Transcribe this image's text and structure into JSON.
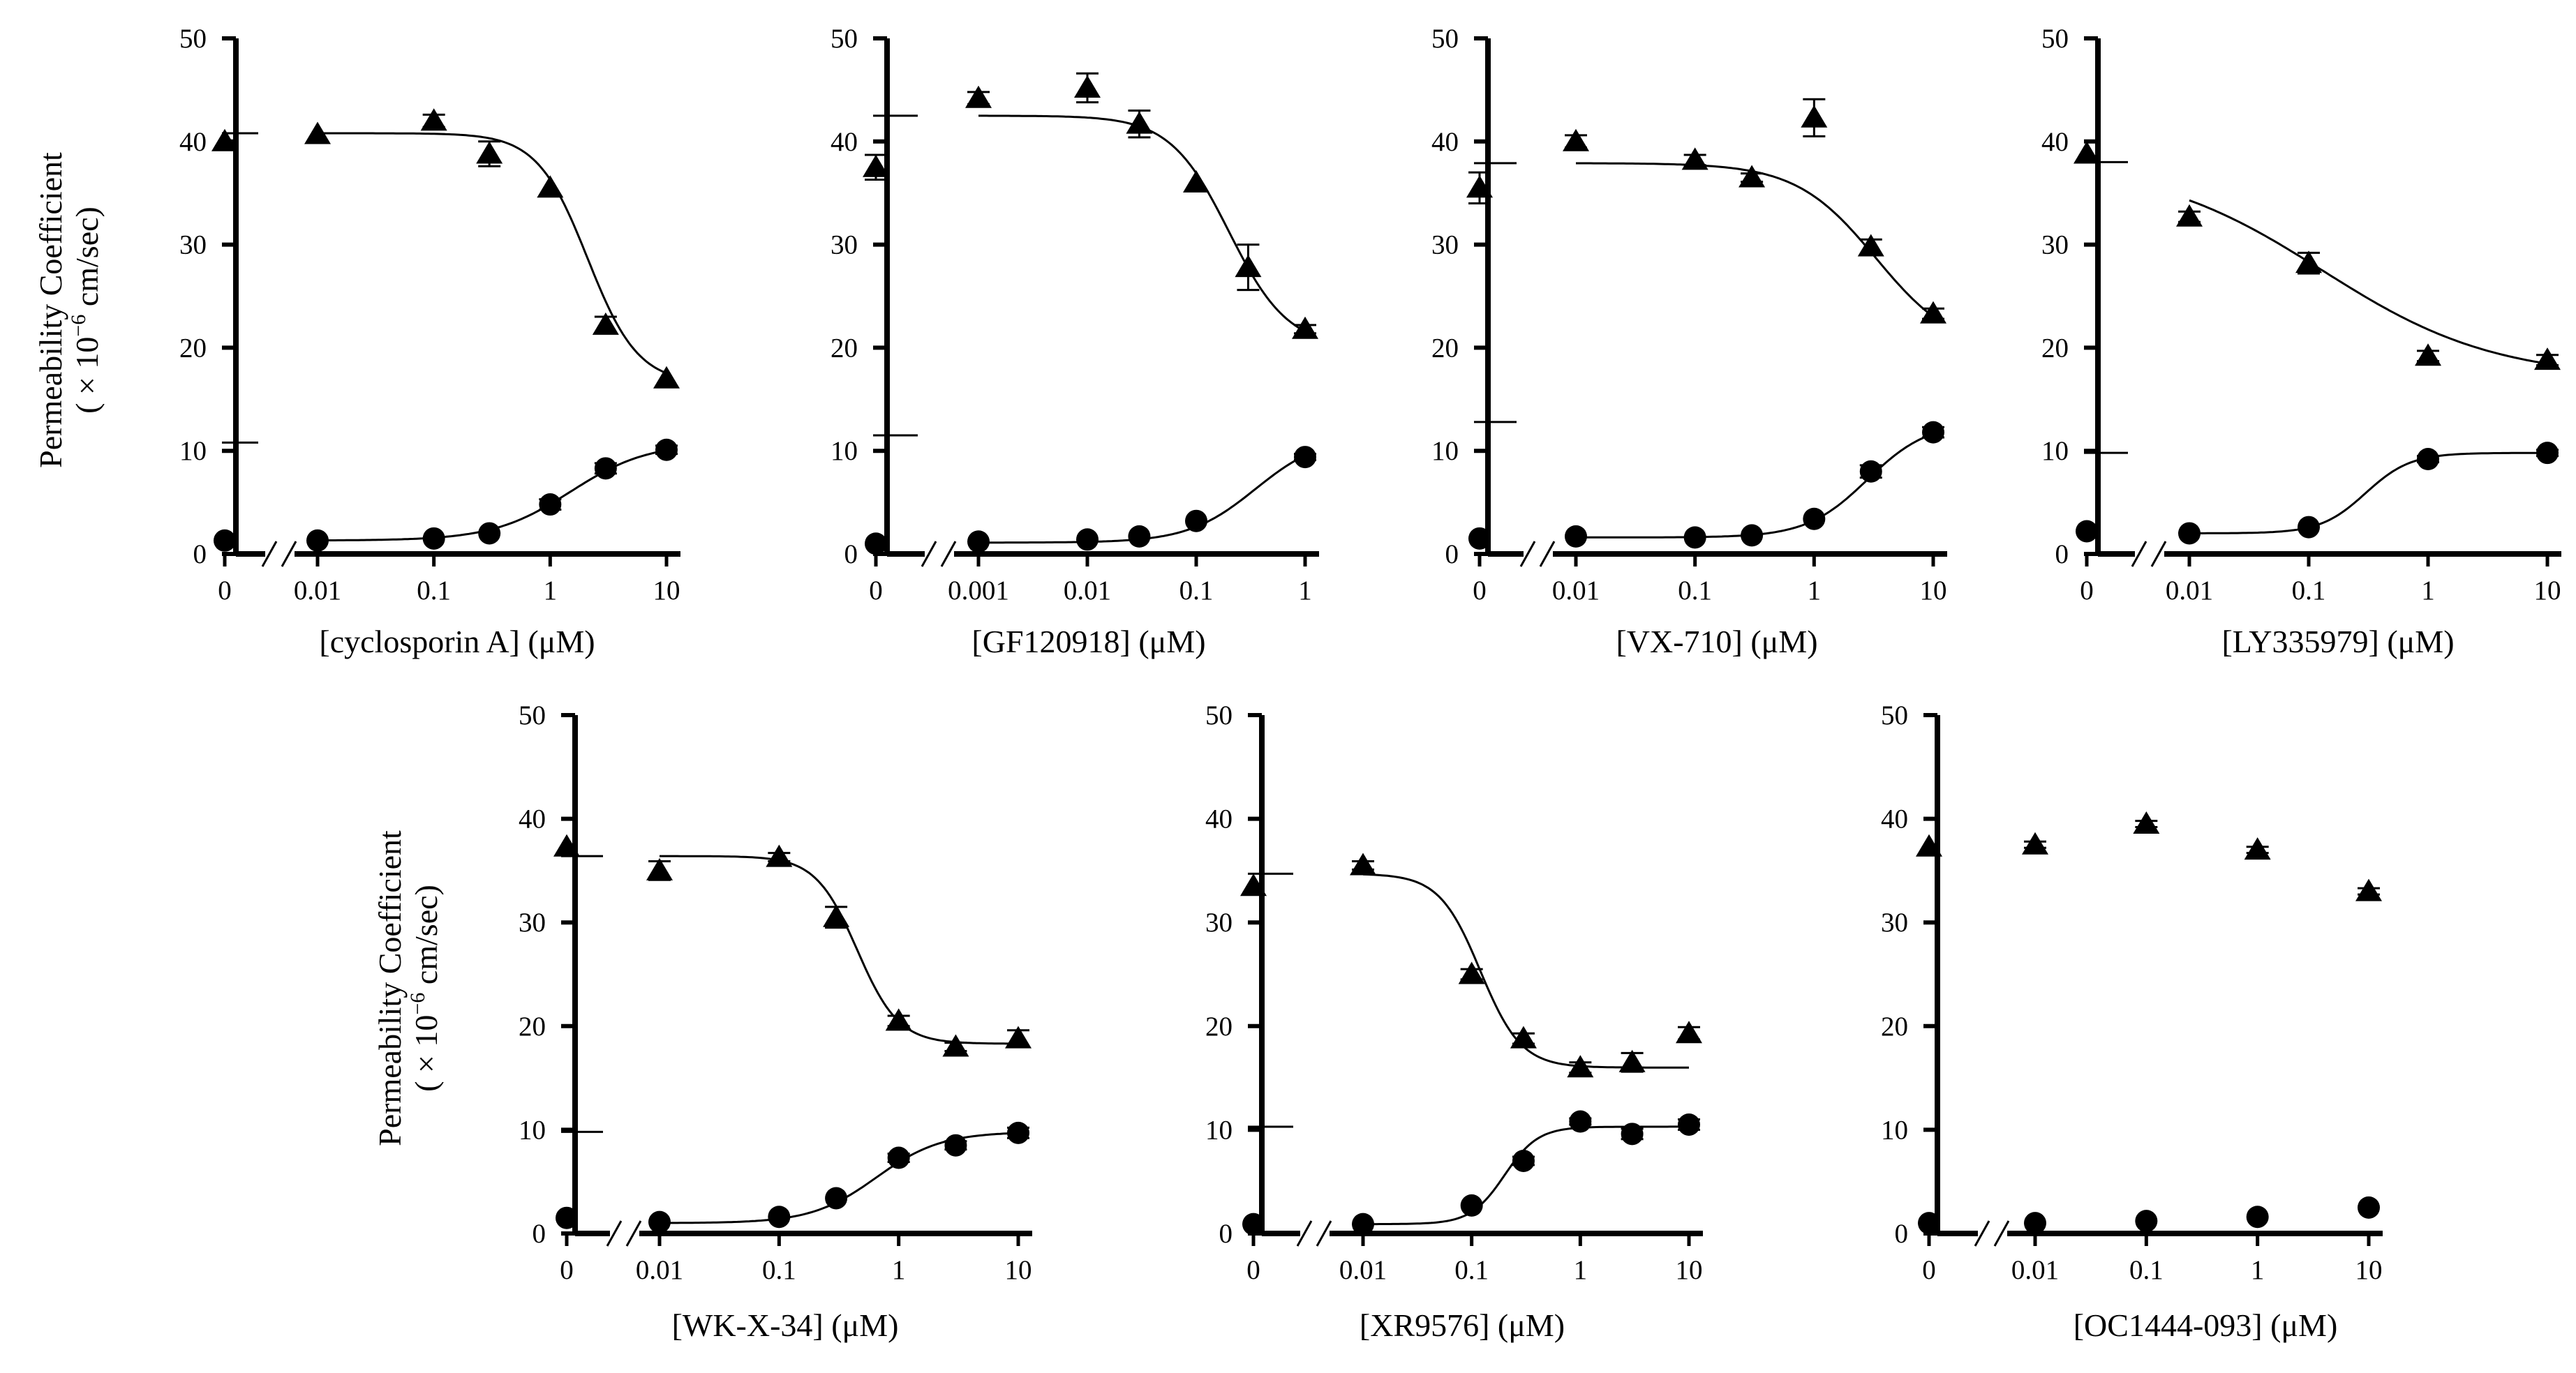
{
  "figure": {
    "ylabel_line1": "Permeability Coefficient",
    "ylabel_line2_prefix": "( × 10",
    "ylabel_line2_exp": "−6",
    "ylabel_line2_suffix": " cm/sec)"
  },
  "colors": {
    "ink": "#000000",
    "background": "#ffffff"
  },
  "chart_data": [
    {
      "type": "scatter",
      "title": "",
      "xlabel": "[cyclosporin A] (μM)",
      "ylabel": "Permeability Coefficient ( × 10⁻⁶ cm/sec)",
      "ylim": [
        0,
        50
      ],
      "yticks": [
        "0",
        "10",
        "20",
        "30",
        "40",
        "50"
      ],
      "zero_label": "0",
      "x_ticks": [
        {
          "value": 0.01,
          "label": "0.01"
        },
        {
          "value": 0.1,
          "label": "0.1"
        },
        {
          "value": 1,
          "label": "1"
        },
        {
          "value": 10,
          "label": "10"
        }
      ],
      "xlim_log": [
        0.008,
        12
      ],
      "series": [
        {
          "name": "triangles",
          "marker": "triangle",
          "control": 40.0,
          "control_err": 0,
          "x": [
            0.01,
            0.1,
            0.3,
            1,
            3,
            10
          ],
          "y": [
            40.7,
            42.0,
            38.8,
            35.5,
            22.2,
            17.0
          ],
          "err": [
            0,
            0.6,
            1.2,
            0,
            0.8,
            0
          ],
          "fit": {
            "bottom": 16.5,
            "top": 40.8,
            "ec50": 2.1,
            "hill": 2.0,
            "x_start": 0.01,
            "x_end": 10
          }
        },
        {
          "name": "circles",
          "marker": "circle",
          "control": 1.3,
          "control_err": 0,
          "x": [
            0.01,
            0.1,
            0.3,
            1,
            3,
            10
          ],
          "y": [
            1.3,
            1.5,
            2.0,
            4.8,
            8.3,
            10.1
          ],
          "err": [
            0,
            0,
            0,
            0.5,
            0.5,
            0.4
          ],
          "fit": {
            "bottom": 1.3,
            "top": 10.8,
            "ec50": 1.5,
            "hill": 1.3,
            "x_start": 0.01,
            "x_end": 10
          }
        }
      ]
    },
    {
      "type": "scatter",
      "title": "",
      "xlabel": "[GF120918] (μM)",
      "ylabel": "",
      "ylim": [
        0,
        50
      ],
      "yticks": [
        "0",
        "10",
        "20",
        "30",
        "40",
        "50"
      ],
      "zero_label": "0",
      "x_ticks": [
        {
          "value": 0.001,
          "label": "0.001"
        },
        {
          "value": 0.01,
          "label": "0.01"
        },
        {
          "value": 0.1,
          "label": "0.1"
        },
        {
          "value": 1,
          "label": "1"
        }
      ],
      "xlim_log": [
        0.0008,
        1.2
      ],
      "series": [
        {
          "name": "triangles",
          "marker": "triangle",
          "control": 37.5,
          "control_err": 1.2,
          "x": [
            0.001,
            0.01,
            0.03,
            0.1,
            0.3,
            1
          ],
          "y": [
            44.2,
            45.2,
            41.7,
            36.0,
            27.8,
            21.8
          ],
          "err": [
            0.6,
            1.4,
            1.3,
            0,
            2.2,
            0.4
          ],
          "fit": {
            "bottom": 20.0,
            "top": 42.5,
            "ec50": 0.2,
            "hill": 1.6,
            "x_start": 0.001,
            "x_end": 1
          }
        },
        {
          "name": "circles",
          "marker": "circle",
          "control": 1.0,
          "control_err": 0,
          "x": [
            0.001,
            0.01,
            0.03,
            0.1,
            1
          ],
          "y": [
            1.2,
            1.4,
            1.7,
            3.2,
            9.4
          ],
          "err": [
            0,
            0,
            0,
            0,
            0.3
          ],
          "fit": {
            "bottom": 1.1,
            "top": 11.5,
            "ec50": 0.35,
            "hill": 1.4,
            "x_start": 0.001,
            "x_end": 1
          }
        }
      ]
    },
    {
      "type": "scatter",
      "title": "",
      "xlabel": "[VX-710] (μM)",
      "ylabel": "",
      "ylim": [
        0,
        50
      ],
      "yticks": [
        "0",
        "10",
        "20",
        "30",
        "40",
        "50"
      ],
      "zero_label": "0",
      "x_ticks": [
        {
          "value": 0.01,
          "label": "0.01"
        },
        {
          "value": 0.1,
          "label": "0.1"
        },
        {
          "value": 1,
          "label": "1"
        },
        {
          "value": 10,
          "label": "10"
        }
      ],
      "xlim_log": [
        0.008,
        12
      ],
      "series": [
        {
          "name": "triangles",
          "marker": "triangle",
          "control": 35.5,
          "control_err": 1.5,
          "x": [
            0.01,
            0.1,
            0.3,
            1,
            3,
            10
          ],
          "y": [
            40.0,
            38.2,
            36.5,
            42.3,
            29.8,
            23.3
          ],
          "err": [
            0.6,
            0.5,
            0.4,
            1.8,
            0.7,
            0.5
          ],
          "fit": {
            "bottom": 19.5,
            "top": 37.9,
            "ec50": 3.3,
            "hill": 1.3,
            "x_start": 0.01,
            "x_end": 10
          }
        },
        {
          "name": "circles",
          "marker": "circle",
          "control": 1.5,
          "control_err": 0,
          "x": [
            0.01,
            0.1,
            0.3,
            1,
            3,
            10
          ],
          "y": [
            1.7,
            1.6,
            1.8,
            3.4,
            8.0,
            11.8
          ],
          "err": [
            0,
            0,
            0,
            0,
            0.6,
            0.5
          ],
          "fit": {
            "bottom": 1.6,
            "top": 12.8,
            "ec50": 2.8,
            "hill": 1.7,
            "x_start": 0.01,
            "x_end": 10
          }
        }
      ]
    },
    {
      "type": "scatter",
      "title": "",
      "xlabel": "[LY335979] (μM)",
      "ylabel": "",
      "ylim": [
        0,
        50
      ],
      "yticks": [
        "0",
        "10",
        "20",
        "30",
        "40",
        "50"
      ],
      "zero_label": "0",
      "x_ticks": [
        {
          "value": 0.01,
          "label": "0.01"
        },
        {
          "value": 0.1,
          "label": "0.1"
        },
        {
          "value": 1,
          "label": "1"
        },
        {
          "value": 10,
          "label": "10"
        }
      ],
      "xlim_log": [
        0.008,
        12
      ],
      "series": [
        {
          "name": "triangles",
          "marker": "triangle",
          "control": 38.8,
          "control_err": 0,
          "x": [
            0.01,
            0.1,
            1,
            10
          ],
          "y": [
            32.7,
            28.2,
            19.2,
            18.8
          ],
          "err": [
            0.5,
            1.0,
            0.5,
            0.5
          ],
          "fit": {
            "bottom": 17.0,
            "top": 38.0,
            "ec50": 0.13,
            "hill": 0.6,
            "x_start": 0.01,
            "x_end": 10
          }
        },
        {
          "name": "circles",
          "marker": "circle",
          "control": 2.2,
          "control_err": 0,
          "x": [
            0.01,
            0.1,
            1,
            10
          ],
          "y": [
            2.0,
            2.6,
            9.2,
            9.8
          ],
          "err": [
            0,
            0,
            0.3,
            0.3
          ],
          "fit": {
            "bottom": 2.0,
            "top": 9.8,
            "ec50": 0.3,
            "hill": 2.3,
            "x_start": 0.01,
            "x_end": 10
          }
        }
      ]
    },
    {
      "type": "scatter",
      "title": "",
      "xlabel": "[WK-X-34] (μM)",
      "ylabel": "Permeability Coefficient ( × 10⁻⁶ cm/sec)",
      "ylim": [
        0,
        50
      ],
      "yticks": [
        "0",
        "10",
        "20",
        "30",
        "40",
        "50"
      ],
      "zero_label": "0",
      "x_ticks": [
        {
          "value": 0.01,
          "label": "0.01"
        },
        {
          "value": 0.1,
          "label": "0.1"
        },
        {
          "value": 1,
          "label": "1"
        },
        {
          "value": 10,
          "label": "10"
        }
      ],
      "xlim_log": [
        0.008,
        12
      ],
      "series": [
        {
          "name": "triangles",
          "marker": "triangle",
          "control": 37.3,
          "control_err": 0,
          "x": [
            0.01,
            0.1,
            0.3,
            1,
            3,
            10
          ],
          "y": [
            35.0,
            36.3,
            30.5,
            20.5,
            18.0,
            18.8
          ],
          "err": [
            0.9,
            0.4,
            1.0,
            0.5,
            0.4,
            0.8
          ],
          "fit": {
            "bottom": 18.3,
            "top": 36.4,
            "ec50": 0.45,
            "hill": 2.5,
            "x_start": 0.01,
            "x_end": 10
          }
        },
        {
          "name": "circles",
          "marker": "circle",
          "control": 1.5,
          "control_err": 0,
          "x": [
            0.01,
            0.1,
            0.3,
            1,
            3,
            10
          ],
          "y": [
            1.1,
            1.6,
            3.4,
            7.3,
            8.5,
            9.7
          ],
          "err": [
            0,
            0,
            0,
            0.4,
            0.4,
            0.5
          ],
          "fit": {
            "bottom": 1.0,
            "top": 9.8,
            "ec50": 0.65,
            "hill": 1.6,
            "x_start": 0.01,
            "x_end": 10
          }
        }
      ]
    },
    {
      "type": "scatter",
      "title": "",
      "xlabel": "[XR9576] (μM)",
      "ylabel": "",
      "ylim": [
        0,
        50
      ],
      "yticks": [
        "0",
        "10",
        "20",
        "30",
        "40",
        "50"
      ],
      "zero_label": "0",
      "x_ticks": [
        {
          "value": 0.01,
          "label": "0.01"
        },
        {
          "value": 0.1,
          "label": "0.1"
        },
        {
          "value": 1,
          "label": "1"
        },
        {
          "value": 10,
          "label": "10"
        }
      ],
      "xlim_log": [
        0.008,
        12
      ],
      "series": [
        {
          "name": "triangles",
          "marker": "triangle",
          "control": 33.5,
          "control_err": 0,
          "x": [
            0.01,
            0.1,
            0.3,
            1,
            3,
            10
          ],
          "y": [
            35.5,
            25.0,
            18.8,
            16.0,
            16.5,
            19.3
          ],
          "err": [
            0.4,
            0.5,
            0.5,
            0.5,
            0.9,
            0.6
          ],
          "fit": {
            "bottom": 16.0,
            "top": 34.7,
            "ec50": 0.12,
            "hill": 2.3,
            "x_start": 0.01,
            "x_end": 10
          }
        },
        {
          "name": "circles",
          "marker": "circle",
          "control": 0.9,
          "control_err": 0,
          "x": [
            0.01,
            0.1,
            0.3,
            1,
            3,
            10
          ],
          "y": [
            0.9,
            2.7,
            7.0,
            10.8,
            9.6,
            10.5
          ],
          "err": [
            0,
            0,
            0.4,
            0.3,
            0.5,
            0.5
          ],
          "fit": {
            "bottom": 0.9,
            "top": 10.3,
            "ec50": 0.2,
            "hill": 2.8,
            "x_start": 0.01,
            "x_end": 10
          }
        }
      ]
    },
    {
      "type": "scatter",
      "title": "",
      "xlabel": "[OC1444-093] (μM)",
      "ylabel": "",
      "ylim": [
        0,
        50
      ],
      "yticks": [
        "0",
        "10",
        "20",
        "30",
        "40",
        "50"
      ],
      "zero_label": "0",
      "x_ticks": [
        {
          "value": 0.01,
          "label": "0.01"
        },
        {
          "value": 0.1,
          "label": "0.1"
        },
        {
          "value": 1,
          "label": "1"
        },
        {
          "value": 10,
          "label": "10"
        }
      ],
      "xlim_log": [
        0.008,
        12
      ],
      "series": [
        {
          "name": "triangles",
          "marker": "triangle",
          "control": 37.3,
          "control_err": 0,
          "x": [
            0.01,
            0.1,
            1,
            10
          ],
          "y": [
            37.5,
            39.5,
            37.0,
            33.0
          ],
          "err": [
            0.3,
            0.3,
            0.3,
            0.3
          ],
          "fit": null
        },
        {
          "name": "circles",
          "marker": "circle",
          "control": 1.0,
          "control_err": 0,
          "x": [
            0.01,
            0.1,
            1,
            10
          ],
          "y": [
            1.0,
            1.2,
            1.6,
            2.5
          ],
          "err": [
            0,
            0,
            0,
            0
          ],
          "fit": null
        }
      ]
    }
  ]
}
